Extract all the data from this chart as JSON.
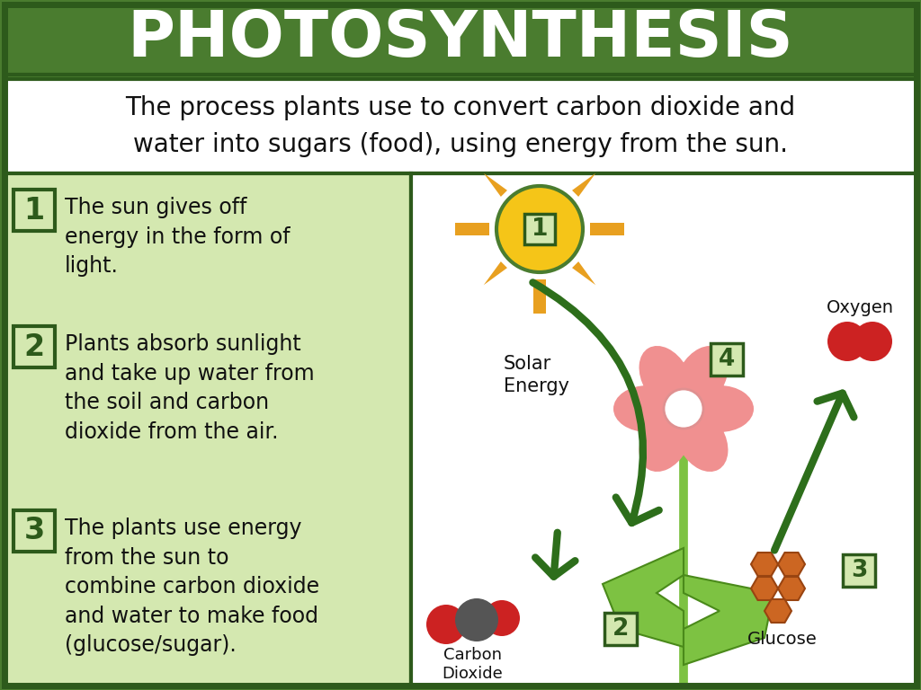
{
  "title": "PHOTOSYNTHESIS",
  "subtitle_line1": "The process plants use to convert carbon dioxide and",
  "subtitle_line2": "water into sugars (food), using energy from the sun.",
  "title_bg": "#4a7c2f",
  "title_fg": "#ffffff",
  "subtitle_bg": "#ffffff",
  "content_bg_left": "#d4e8b0",
  "content_bg_right": "#ffffff",
  "dark_green": "#2d5a1b",
  "steps": [
    {
      "num": "1",
      "text": "The sun gives off\nenergy in the form of\nlight."
    },
    {
      "num": "2",
      "text": "Plants absorb sunlight\nand take up water from\nthe soil and carbon\ndioxide from the air."
    },
    {
      "num": "3",
      "text": "The plants use energy\nfrom the sun to\ncombine carbon dioxide\nand water to make food\n(glucose/sugar)."
    }
  ],
  "sun_body_color": "#f5c518",
  "sun_ray_color": "#e8a020",
  "sun_outline": "#4a7c2f",
  "flower_petal": "#f09090",
  "flower_center": "#ffffff",
  "leaf_color": "#7dc242",
  "leaf_vein": "#4a8a1a",
  "co2_carbon": "#555555",
  "co2_oxygen": "#cc2222",
  "glucose_fill": "#cc6622",
  "glucose_edge": "#994411",
  "oxygen_fill": "#cc2222",
  "arrow_green": "#2d6e1b",
  "border_dark": "#2d5a1b",
  "num_box_bg": "#d4e8b0",
  "num_box_border": "#2d5a1b"
}
